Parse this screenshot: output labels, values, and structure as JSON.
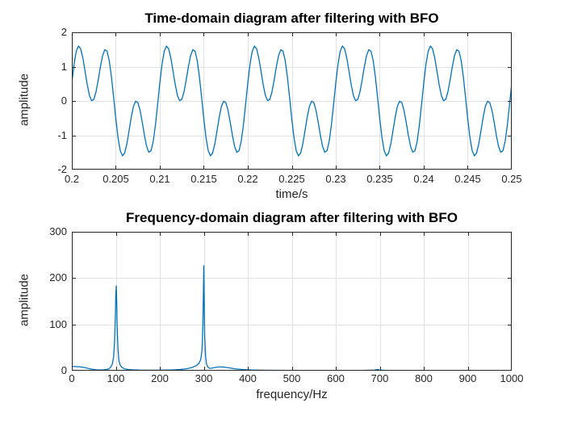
{
  "figure": {
    "background": "#ffffff",
    "description": "MATLAB figure with two stacked subplots showing a signal after BFO filtering"
  },
  "colors": {
    "line": "#0072BD",
    "grid": "#e2e2e2",
    "axis": "#262626",
    "tick_text": "#262626",
    "title_text": "#000000"
  },
  "chart_data": [
    {
      "type": "line",
      "title": "Time-domain diagram after filtering with BFO",
      "xlabel": "time/s",
      "ylabel": "amplitude",
      "xlim": [
        0.2,
        0.25
      ],
      "ylim": [
        -2,
        2
      ],
      "xticks": [
        0.2,
        0.205,
        0.21,
        0.215,
        0.22,
        0.225,
        0.23,
        0.235,
        0.24,
        0.245,
        0.25
      ],
      "xtick_labels": [
        "0.2",
        "0.205",
        "0.21",
        "0.215",
        "0.22",
        "0.225",
        "0.23",
        "0.235",
        "0.24",
        "0.245",
        "0.25"
      ],
      "yticks": [
        -2,
        -1,
        0,
        1,
        2
      ],
      "ytick_labels": [
        "-2",
        "-1",
        "0",
        "1",
        "2"
      ],
      "grid": true,
      "legend": null,
      "signal": {
        "description": "periodic waveform, period 0.01 s, sum of 100 Hz and 300 Hz sinusoids remaining after band-pass filtering",
        "t_start": 0.2,
        "t_end": 0.25,
        "dt": 0.00025,
        "components": [
          {
            "freq_hz": 100,
            "amplitude": 1.01,
            "phase_deg_at_t_start": 10
          },
          {
            "freq_hz": 300,
            "amplitude": 1.01,
            "phase_deg_at_t_start": 20
          }
        ]
      },
      "visual_features": {
        "max_peak": 1.6,
        "secondary_peak": 1.45,
        "min_trough": -1.6,
        "periods_visible": 5
      }
    },
    {
      "type": "line",
      "title": "Frequency-domain diagram after filtering with BFO",
      "xlabel": "frequency/Hz",
      "ylabel": "amplitude",
      "xlim": [
        0,
        1000
      ],
      "ylim": [
        0,
        300
      ],
      "xticks": [
        0,
        100,
        200,
        300,
        400,
        500,
        600,
        700,
        800,
        900,
        1000
      ],
      "xtick_labels": [
        "0",
        "100",
        "200",
        "300",
        "400",
        "500",
        "600",
        "700",
        "800",
        "900",
        "1000"
      ],
      "yticks": [
        0,
        100,
        200,
        300
      ],
      "ytick_labels": [
        "0",
        "100",
        "200",
        "300"
      ],
      "grid": true,
      "legend": null,
      "peaks": [
        {
          "freq_hz": 100,
          "amplitude": 183
        },
        {
          "freq_hz": 300,
          "amplitude": 227
        }
      ],
      "points": [
        [
          0,
          9
        ],
        [
          8,
          9
        ],
        [
          18,
          8.5
        ],
        [
          30,
          6.5
        ],
        [
          42,
          4
        ],
        [
          55,
          2
        ],
        [
          68,
          1.5
        ],
        [
          78,
          2.5
        ],
        [
          84,
          4
        ],
        [
          88,
          7
        ],
        [
          92,
          14
        ],
        [
          95,
          30
        ],
        [
          97,
          60
        ],
        [
          99,
          120
        ],
        [
          100,
          165
        ],
        [
          101,
          183
        ],
        [
          102,
          150
        ],
        [
          103,
          95
        ],
        [
          105,
          45
        ],
        [
          107,
          22
        ],
        [
          110,
          12
        ],
        [
          114,
          7
        ],
        [
          120,
          4
        ],
        [
          128,
          2.5
        ],
        [
          140,
          1.8
        ],
        [
          155,
          1.2
        ],
        [
          170,
          1
        ],
        [
          190,
          1
        ],
        [
          210,
          1.2
        ],
        [
          230,
          1.6
        ],
        [
          245,
          2.5
        ],
        [
          255,
          3.5
        ],
        [
          265,
          5
        ],
        [
          275,
          7.5
        ],
        [
          283,
          11
        ],
        [
          289,
          16
        ],
        [
          293,
          24
        ],
        [
          296,
          45
        ],
        [
          298,
          100
        ],
        [
          299,
          160
        ],
        [
          300,
          227
        ],
        [
          301,
          150
        ],
        [
          302,
          75
        ],
        [
          304,
          32
        ],
        [
          306,
          15
        ],
        [
          309,
          8
        ],
        [
          313,
          5
        ],
        [
          318,
          5.5
        ],
        [
          325,
          7
        ],
        [
          333,
          8
        ],
        [
          342,
          8
        ],
        [
          352,
          7
        ],
        [
          362,
          5.5
        ],
        [
          372,
          4
        ],
        [
          383,
          3
        ],
        [
          395,
          2.2
        ],
        [
          410,
          1.5
        ],
        [
          430,
          1
        ],
        [
          460,
          0.8
        ],
        [
          500,
          0.7
        ],
        [
          540,
          0.6
        ],
        [
          580,
          0.6
        ],
        [
          620,
          0.6
        ],
        [
          660,
          0.7
        ],
        [
          688,
          1.2
        ],
        [
          695,
          2.6
        ],
        [
          700,
          1.5
        ],
        [
          710,
          0.8
        ],
        [
          740,
          0.6
        ],
        [
          780,
          0.5
        ],
        [
          820,
          0.5
        ],
        [
          860,
          0.4
        ],
        [
          900,
          0.4
        ],
        [
          950,
          0.35
        ],
        [
          1000,
          0.3
        ]
      ]
    }
  ]
}
